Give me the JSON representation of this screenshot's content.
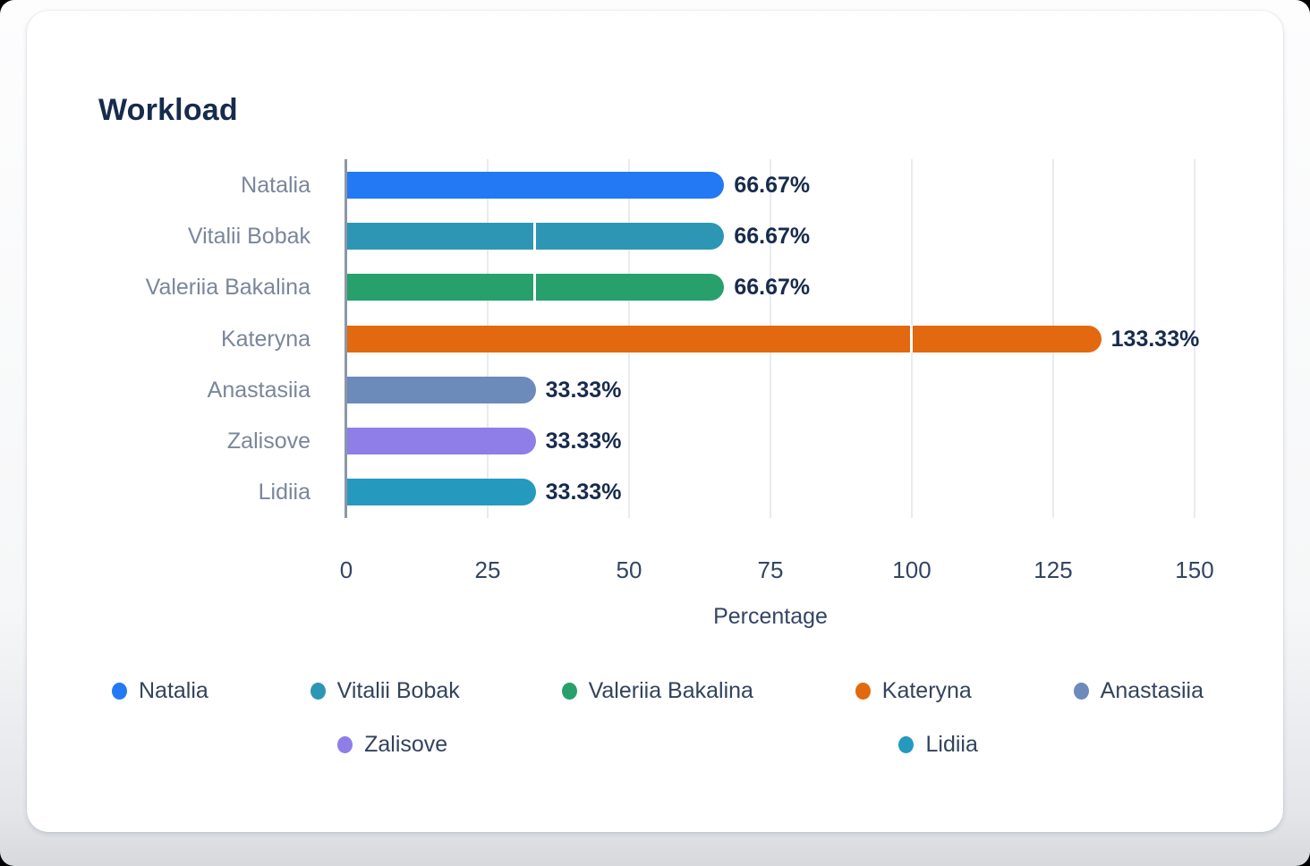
{
  "chart_data": {
    "type": "bar",
    "orientation": "horizontal",
    "title": "Workload",
    "xlabel": "Percentage",
    "categories": [
      "Natalia",
      "Vitalii Bobak",
      "Valeriia Bakalina",
      "Kateryna",
      "Anastasiia",
      "Zalisove",
      "Lidiia"
    ],
    "values": [
      66.67,
      66.67,
      66.67,
      133.33,
      33.33,
      33.33,
      33.33
    ],
    "value_labels": [
      "66.67%",
      "66.67%",
      "66.67%",
      "133.33%",
      "33.33%",
      "33.33%",
      "33.33%"
    ],
    "bar_segments": [
      [
        66.67
      ],
      [
        33.33,
        33.34
      ],
      [
        33.33,
        33.34
      ],
      [
        100,
        33.33
      ],
      [
        33.33
      ],
      [
        33.33
      ],
      [
        33.33
      ]
    ],
    "colors": [
      "#2279F3",
      "#2D96B5",
      "#27A06B",
      "#E2690F",
      "#6C8ABA",
      "#8F7EE8",
      "#2599BE"
    ],
    "xticks": [
      "0",
      "25",
      "50",
      "75",
      "100",
      "125",
      "150"
    ],
    "xtick_values": [
      0,
      25,
      50,
      75,
      100,
      125,
      150
    ],
    "xlim": [
      0,
      150
    ],
    "grid": true,
    "legend_position": "bottom",
    "legend_rows": [
      [
        "Natalia",
        "Vitalii Bobak",
        "Valeriia Bakalina",
        "Kateryna",
        "Anastasiia"
      ],
      [
        "Zalisove",
        "Lidiia"
      ]
    ]
  }
}
